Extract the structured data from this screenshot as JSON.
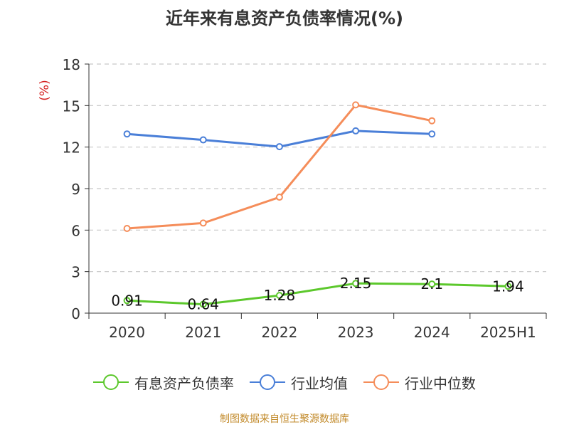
{
  "chart_data": {
    "type": "line",
    "title": "近年来有息资产负债率情况(%)",
    "ylabel": "(%)",
    "xlabel": "",
    "categories": [
      "2020",
      "2021",
      "2022",
      "2023",
      "2024",
      "2025H1"
    ],
    "ylim": [
      0,
      18
    ],
    "yticks": [
      0,
      3,
      6,
      9,
      12,
      15,
      18
    ],
    "grid": true,
    "legend_position": "bottom",
    "series": [
      {
        "name": "有息资产负债率",
        "color": "#5cc82c",
        "values": [
          0.91,
          0.64,
          1.28,
          2.15,
          2.1,
          1.94
        ],
        "labels": [
          "0.91",
          "0.64",
          "1.28",
          "2.15",
          "2.1",
          "1.94"
        ]
      },
      {
        "name": "行业均值",
        "color": "#4a7fd8",
        "values": [
          12.95,
          12.52,
          12.03,
          13.17,
          12.95,
          null
        ]
      },
      {
        "name": "行业中位数",
        "color": "#f58d5a",
        "values": [
          6.12,
          6.51,
          8.38,
          15.05,
          13.9,
          null
        ]
      }
    ]
  },
  "footer": {
    "source": "制图数据来自恒生聚源数据库"
  }
}
